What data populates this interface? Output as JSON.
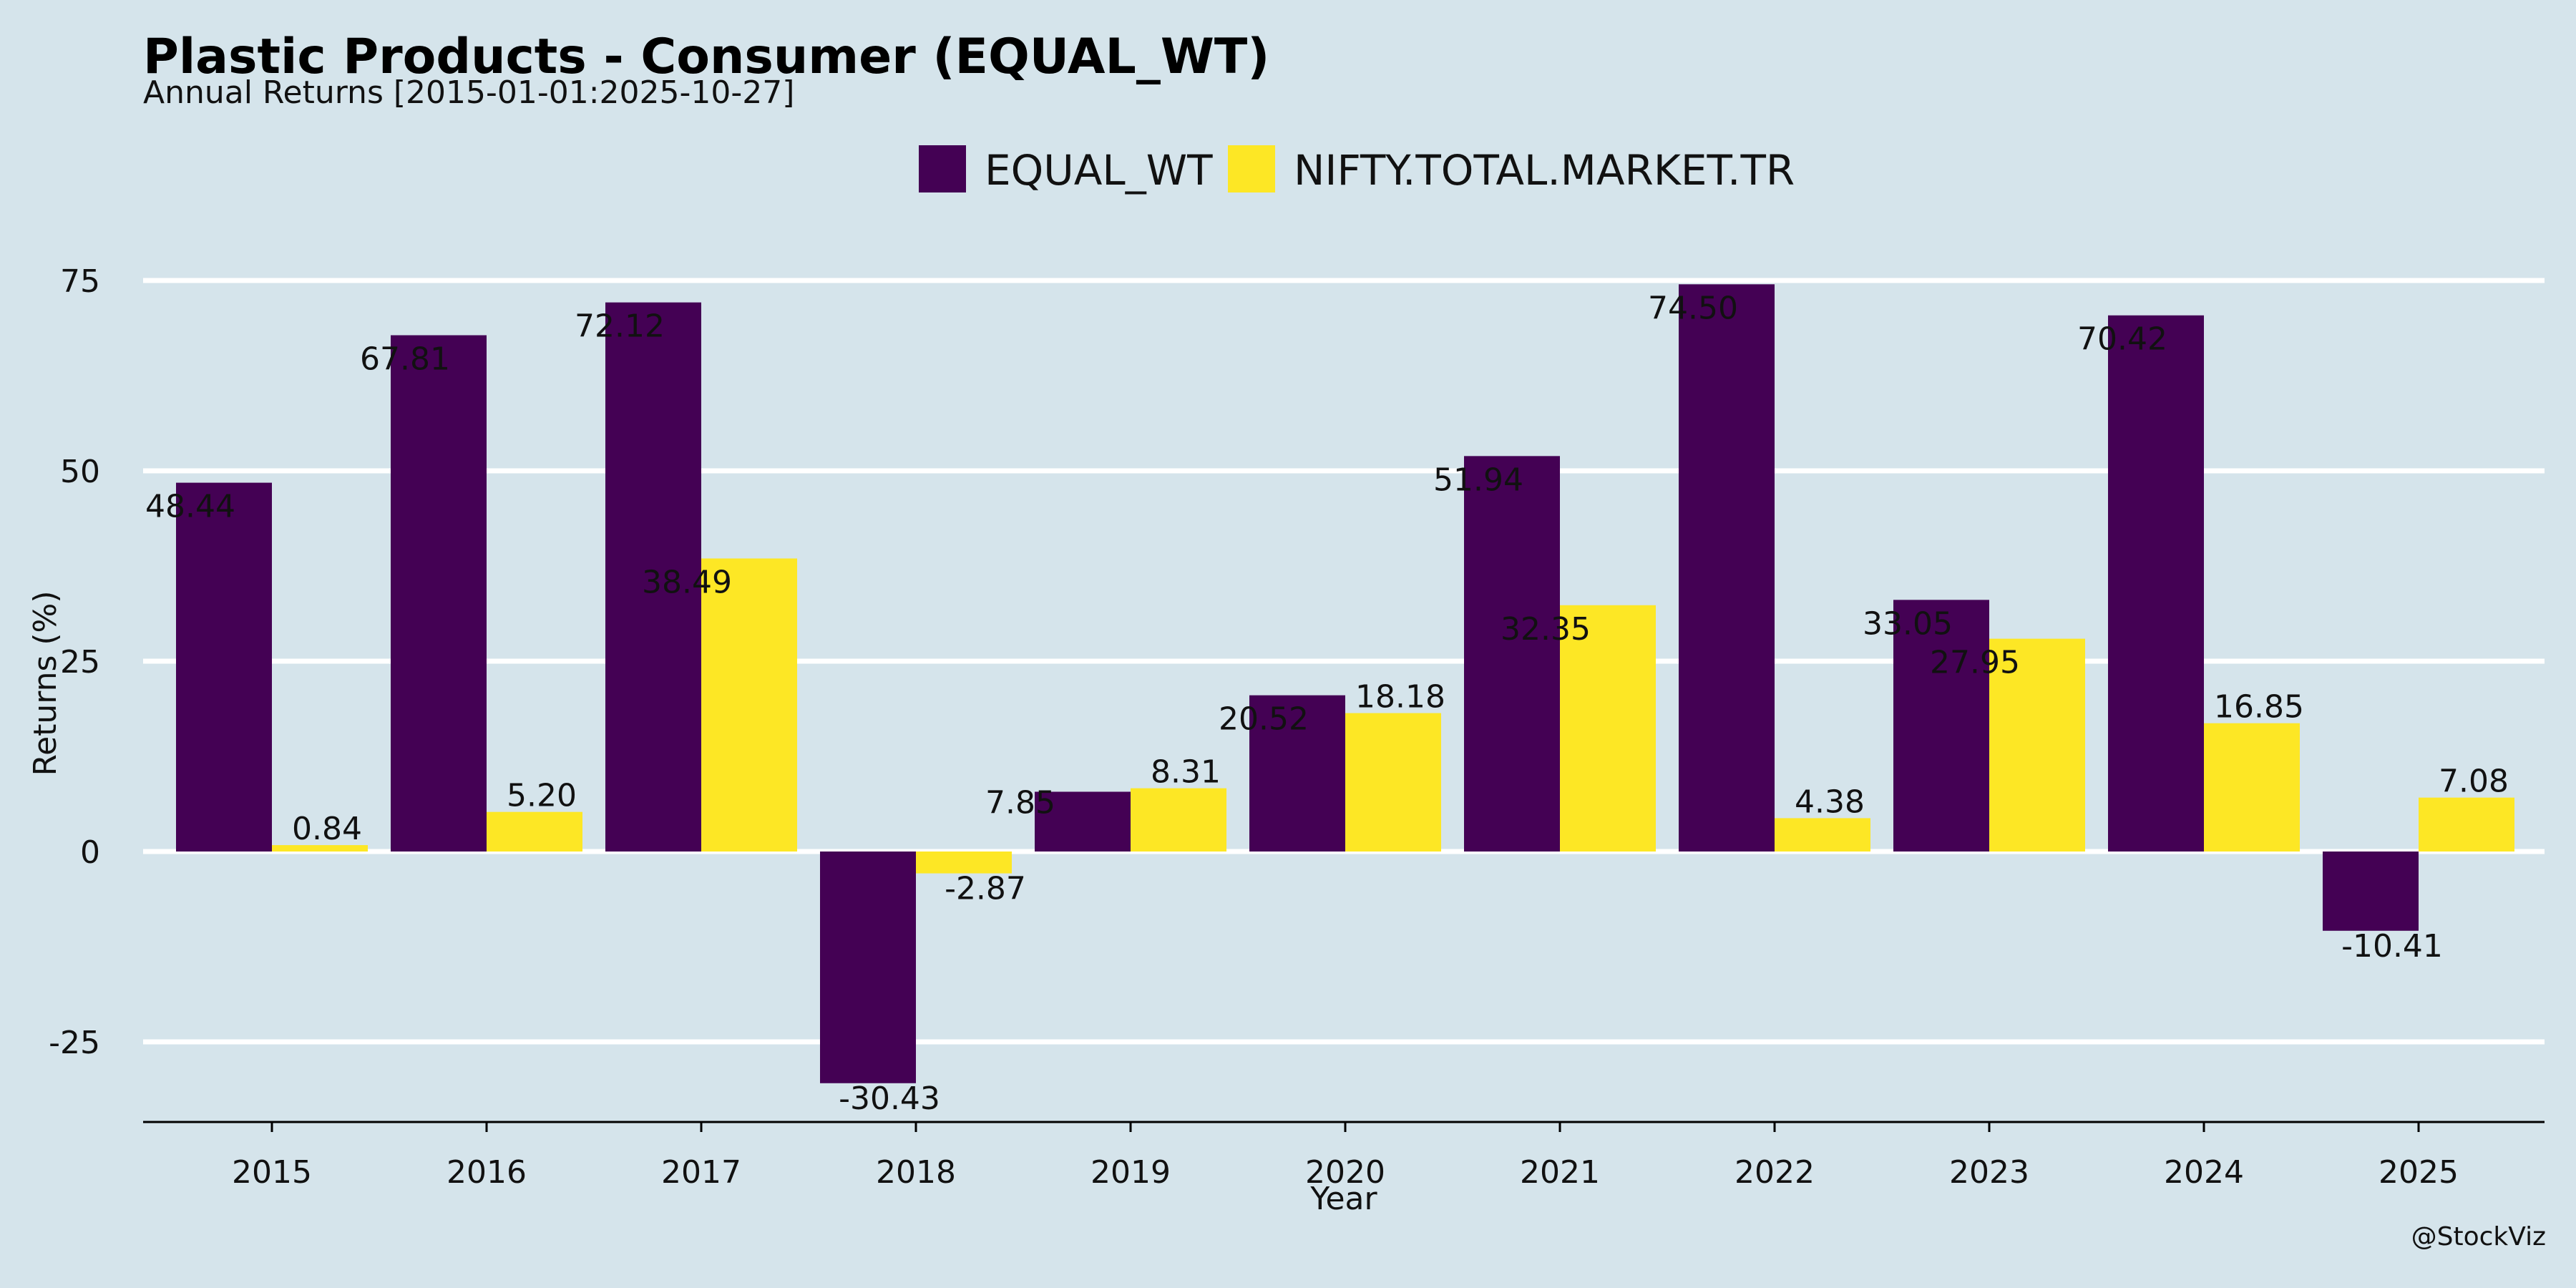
{
  "title": "Plastic Products - Consumer (EQUAL_WT)",
  "subtitle": "Annual Returns [2015-01-01:2025-10-27]",
  "credit": "@StockViz",
  "colors": {
    "background": "#d5e4eb",
    "EQUAL_WT": "#440154",
    "NIFTY.TOTAL.MARKET.TR": "#fde725",
    "grid": "#ffffff"
  },
  "chart_data": {
    "type": "bar",
    "title": "Plastic Products - Consumer (EQUAL_WT)",
    "subtitle": "Annual Returns [2015-01-01:2025-10-27]",
    "xlabel": "Year",
    "ylabel": "Returns (%)",
    "ylim": [
      -36,
      80
    ],
    "yticks": [
      -25,
      0,
      25,
      50,
      75
    ],
    "ytick_labels": [
      "-25",
      "0",
      "25",
      "50",
      "75"
    ],
    "grid": true,
    "legend_position": "top-center",
    "categories": [
      "2015",
      "2016",
      "2017",
      "2018",
      "2019",
      "2020",
      "2021",
      "2022",
      "2023",
      "2024",
      "2025"
    ],
    "series": [
      {
        "name": "EQUAL_WT",
        "color": "#440154",
        "values": [
          48.44,
          67.81,
          72.12,
          -30.43,
          7.85,
          20.52,
          51.94,
          74.5,
          33.05,
          70.42,
          -10.41
        ],
        "labels": [
          "48.44",
          "67.81",
          "72.12",
          "-30.43",
          "7.85",
          "20.52",
          "51.94",
          "74.50",
          "33.05",
          "70.42",
          "-10.41"
        ]
      },
      {
        "name": "NIFTY.TOTAL.MARKET.TR",
        "color": "#fde725",
        "values": [
          0.84,
          5.2,
          38.49,
          -2.87,
          8.31,
          18.18,
          32.35,
          4.38,
          27.95,
          16.85,
          7.08
        ],
        "labels": [
          "0.84",
          "5.20",
          "38.49",
          "-2.87",
          "8.31",
          "18.18",
          "32.35",
          "4.38",
          "27.95",
          "16.85",
          "7.08"
        ]
      }
    ]
  }
}
